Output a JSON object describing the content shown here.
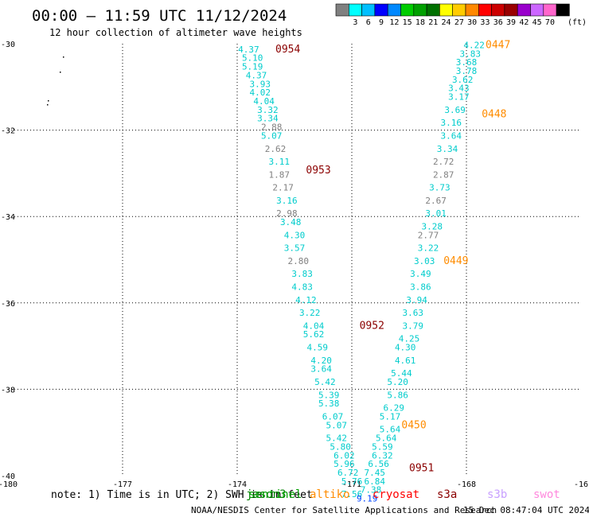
{
  "header": {
    "title": "00:00 – 11:59 UTC 11/12/2024",
    "subtitle": "12 hour collection of altimeter wave heights"
  },
  "colorbar": {
    "colors": [
      "#808080",
      "#00ffff",
      "#00bfff",
      "#0000ff",
      "#0088ff",
      "#00cc00",
      "#00a000",
      "#007000",
      "#ffff00",
      "#ffcc00",
      "#ff8800",
      "#ff0000",
      "#cc0000",
      "#990000",
      "#9900cc",
      "#cc66ff",
      "#ff66cc",
      "#000000"
    ],
    "ticks": [
      "3",
      "6",
      "9",
      "12",
      "15",
      "18",
      "21",
      "24",
      "27",
      "30",
      "33",
      "36",
      "39",
      "42",
      "45",
      "70"
    ],
    "unit": "(ft)"
  },
  "note": "note:  1) Time is in UTC; 2) SWH is in feet",
  "footer": {
    "credit": "NOAA/NESDIS Center for Satellite Applications and Research",
    "timestamp": "15 Dec 08:47:04 UTC 2024"
  },
  "legend": [
    {
      "label": "jason3",
      "color": "#008000"
    },
    {
      "label": "sentinel",
      "color": "#00a000"
    },
    {
      "label": "altiko",
      "color": "#ff8c00"
    },
    {
      "label": "cryosat",
      "color": "#ff0000"
    },
    {
      "label": "s3a",
      "color": "#8b0000"
    },
    {
      "label": "s3b",
      "color": "#c8a0ff"
    },
    {
      "label": "swot",
      "color": "#ff88dd"
    }
  ],
  "chart_data": {
    "type": "scatter",
    "title": "",
    "xlabel": "",
    "ylabel": "",
    "xlim": [
      -180,
      -165
    ],
    "ylim": [
      -40,
      -30
    ],
    "xticks": [
      "-180",
      "-177",
      "-174",
      "-171",
      "-168",
      "-16"
    ],
    "yticks": [
      "-30",
      "-32",
      "-34",
      "-36",
      "-38",
      "-40"
    ],
    "grid": true,
    "passes": [
      {
        "label": "0954",
        "color": "#8b0000",
        "x": -173.0,
        "y": -30.2
      },
      {
        "label": "0953",
        "color": "#8b0000",
        "x": -172.2,
        "y": -33.0
      },
      {
        "label": "0952",
        "color": "#8b0000",
        "x": -170.8,
        "y": -36.6
      },
      {
        "label": "0951",
        "color": "#8b0000",
        "x": -169.5,
        "y": -39.9
      },
      {
        "label": "0447",
        "color": "#ff8c00",
        "x": -167.5,
        "y": -30.1
      },
      {
        "label": "0448",
        "color": "#ff8c00",
        "x": -167.6,
        "y": -31.7
      },
      {
        "label": "0449",
        "color": "#ff8c00",
        "x": -168.6,
        "y": -35.1
      },
      {
        "label": "0450",
        "color": "#ff8c00",
        "x": -169.7,
        "y": -38.9
      }
    ],
    "series": [
      {
        "name": "0954",
        "color": "#00cccc",
        "points": [
          {
            "x": -173.7,
            "y": -30.2,
            "v": "4.37"
          },
          {
            "x": -173.6,
            "y": -30.4,
            "v": "5.10"
          },
          {
            "x": -173.6,
            "y": -30.6,
            "v": "5.19"
          },
          {
            "x": -173.5,
            "y": -30.8,
            "v": "4.37"
          },
          {
            "x": -173.4,
            "y": -31.0,
            "v": "3.93"
          },
          {
            "x": -173.4,
            "y": -31.2,
            "v": "4.02"
          },
          {
            "x": -173.3,
            "y": -31.4,
            "v": "4.04"
          },
          {
            "x": -173.2,
            "y": -31.6,
            "v": "3.32"
          },
          {
            "x": -173.2,
            "y": -31.8,
            "v": "3.34"
          },
          {
            "x": -173.1,
            "y": -32.0,
            "v": "2.88",
            "c": "#808080"
          },
          {
            "x": -173.1,
            "y": -32.2,
            "v": "5.07"
          },
          {
            "x": -173.0,
            "y": -32.5,
            "v": "2.62",
            "c": "#808080"
          },
          {
            "x": -172.9,
            "y": -32.8,
            "v": "3.11"
          },
          {
            "x": -172.9,
            "y": -33.1,
            "v": "1.87",
            "c": "#808080"
          },
          {
            "x": -172.8,
            "y": -33.4,
            "v": "2.17",
            "c": "#808080"
          },
          {
            "x": -172.7,
            "y": -33.7,
            "v": "3.16"
          },
          {
            "x": -172.7,
            "y": -34.0,
            "v": "2.98",
            "c": "#808080"
          },
          {
            "x": -172.6,
            "y": -34.2,
            "v": "3.48"
          },
          {
            "x": -172.5,
            "y": -34.5,
            "v": "4.30"
          },
          {
            "x": -172.5,
            "y": -34.8,
            "v": "3.57"
          },
          {
            "x": -172.4,
            "y": -35.1,
            "v": "2.80",
            "c": "#808080"
          },
          {
            "x": -172.3,
            "y": -35.4,
            "v": "3.83"
          },
          {
            "x": -172.3,
            "y": -35.7,
            "v": "4.83"
          },
          {
            "x": -172.2,
            "y": -36.0,
            "v": "4.12"
          },
          {
            "x": -172.1,
            "y": -36.3,
            "v": "3.22"
          },
          {
            "x": -172.0,
            "y": -36.6,
            "v": "4.04"
          },
          {
            "x": -172.0,
            "y": -36.8,
            "v": "5.62"
          },
          {
            "x": -171.9,
            "y": -37.1,
            "v": "4.59"
          },
          {
            "x": -171.8,
            "y": -37.4,
            "v": "4.20"
          },
          {
            "x": -171.8,
            "y": -37.6,
            "v": "3.64"
          },
          {
            "x": -171.7,
            "y": -37.9,
            "v": "5.42"
          },
          {
            "x": -171.6,
            "y": -38.2,
            "v": "5.39"
          },
          {
            "x": -171.6,
            "y": -38.4,
            "v": "5.38"
          },
          {
            "x": -171.5,
            "y": -38.7,
            "v": "6.07"
          },
          {
            "x": -171.4,
            "y": -38.9,
            "v": "5.07"
          },
          {
            "x": -171.4,
            "y": -39.2,
            "v": "5.42"
          },
          {
            "x": -171.3,
            "y": -39.4,
            "v": "5.80"
          },
          {
            "x": -171.2,
            "y": -39.6,
            "v": "6.02"
          },
          {
            "x": -171.2,
            "y": -39.8,
            "v": "5.96"
          },
          {
            "x": -171.1,
            "y": -40.0,
            "v": "6.72"
          },
          {
            "x": -171.0,
            "y": -40.2,
            "v": "5.76"
          },
          {
            "x": -171.0,
            "y": -40.5,
            "v": "7.56"
          }
        ]
      },
      {
        "name": "0447",
        "color": "#00cccc",
        "points": [
          {
            "x": -167.8,
            "y": -30.1,
            "v": "4.22"
          },
          {
            "x": -167.9,
            "y": -30.3,
            "v": "3.83"
          },
          {
            "x": -168.0,
            "y": -30.5,
            "v": "3.68"
          },
          {
            "x": -168.0,
            "y": -30.7,
            "v": "3.78"
          },
          {
            "x": -168.1,
            "y": -30.9,
            "v": "3.62"
          },
          {
            "x": -168.2,
            "y": -31.1,
            "v": "3.43"
          },
          {
            "x": -168.2,
            "y": -31.3,
            "v": "3.17"
          },
          {
            "x": -168.3,
            "y": -31.6,
            "v": "3.69"
          },
          {
            "x": -168.4,
            "y": -31.9,
            "v": "3.16"
          },
          {
            "x": -168.4,
            "y": -32.2,
            "v": "3.64"
          },
          {
            "x": -168.5,
            "y": -32.5,
            "v": "3.34"
          },
          {
            "x": -168.6,
            "y": -32.8,
            "v": "2.72",
            "c": "#808080"
          },
          {
            "x": -168.6,
            "y": -33.1,
            "v": "2.87",
            "c": "#808080"
          },
          {
            "x": -168.7,
            "y": -33.4,
            "v": "3.73"
          },
          {
            "x": -168.8,
            "y": -33.7,
            "v": "2.67",
            "c": "#808080"
          },
          {
            "x": -168.8,
            "y": -34.0,
            "v": "3.01"
          },
          {
            "x": -168.9,
            "y": -34.3,
            "v": "3.28"
          },
          {
            "x": -169.0,
            "y": -34.5,
            "v": "2.77",
            "c": "#808080"
          },
          {
            "x": -169.0,
            "y": -34.8,
            "v": "3.22"
          },
          {
            "x": -169.1,
            "y": -35.1,
            "v": "3.03"
          },
          {
            "x": -169.2,
            "y": -35.4,
            "v": "3.49"
          },
          {
            "x": -169.2,
            "y": -35.7,
            "v": "3.86"
          },
          {
            "x": -169.3,
            "y": -36.0,
            "v": "3.94"
          },
          {
            "x": -169.4,
            "y": -36.3,
            "v": "3.63"
          },
          {
            "x": -169.4,
            "y": -36.6,
            "v": "3.79"
          },
          {
            "x": -169.5,
            "y": -36.9,
            "v": "4.25"
          },
          {
            "x": -169.6,
            "y": -37.1,
            "v": "4.30"
          },
          {
            "x": -169.6,
            "y": -37.4,
            "v": "4.61"
          },
          {
            "x": -169.7,
            "y": -37.7,
            "v": "5.44"
          },
          {
            "x": -169.8,
            "y": -37.9,
            "v": "5.20"
          },
          {
            "x": -169.8,
            "y": -38.2,
            "v": "5.86"
          },
          {
            "x": -169.9,
            "y": -38.5,
            "v": "6.29"
          },
          {
            "x": -170.0,
            "y": -38.7,
            "v": "5.17"
          },
          {
            "x": -170.0,
            "y": -39.0,
            "v": "5.64"
          },
          {
            "x": -170.1,
            "y": -39.2,
            "v": "5.64"
          },
          {
            "x": -170.2,
            "y": -39.4,
            "v": "5.59"
          },
          {
            "x": -170.2,
            "y": -39.6,
            "v": "6.32"
          },
          {
            "x": -170.3,
            "y": -39.8,
            "v": "6.56"
          },
          {
            "x": -170.4,
            "y": -40.0,
            "v": "7.45"
          },
          {
            "x": -170.4,
            "y": -40.2,
            "v": "6.84"
          },
          {
            "x": -170.5,
            "y": -40.4,
            "v": "7.38"
          },
          {
            "x": -170.6,
            "y": -40.6,
            "v": "9.19",
            "c": "#0044ff"
          }
        ]
      }
    ]
  }
}
